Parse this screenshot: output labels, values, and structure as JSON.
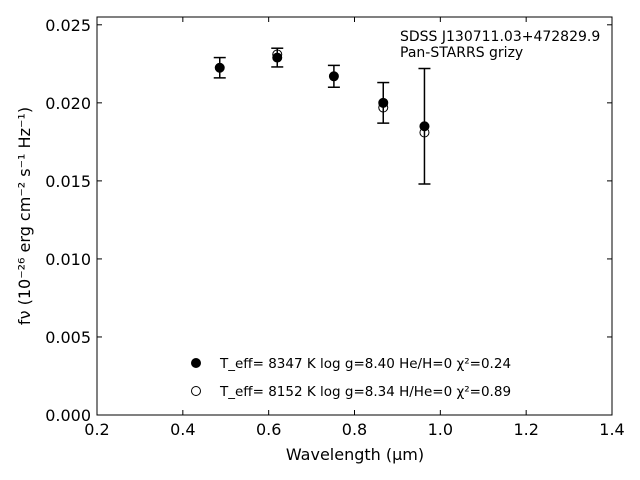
{
  "chart_data": {
    "type": "scatter",
    "xlabel": "Wavelength (μm)",
    "ylabel": "fν (10⁻²⁶ erg cm⁻² s⁻¹ Hz⁻¹)",
    "xlim": [
      0.2,
      1.4
    ],
    "ylim": [
      0.0,
      0.0255
    ],
    "xticks": [
      0.2,
      0.4,
      0.6,
      0.8,
      1.0,
      1.2,
      1.4
    ],
    "xtick_labels": [
      "0.2",
      "0.4",
      "0.6",
      "0.8",
      "1.0",
      "1.2",
      "1.4"
    ],
    "yticks": [
      0.0,
      0.005,
      0.01,
      0.015,
      0.02,
      0.025
    ],
    "ytick_labels": [
      "0.000",
      "0.005",
      "0.010",
      "0.015",
      "0.020",
      "0.025"
    ],
    "grid": false,
    "legend_position": "lower-center",
    "annotation": [
      "SDSS J130711.03+472829.9",
      "Pan-STARRS grizy"
    ],
    "series": [
      {
        "name": "T_eff= 8347 K  log g=8.40  He/H=0  χ²=0.24",
        "marker": "filled-circle",
        "x": [
          0.486,
          0.62,
          0.752,
          0.867,
          0.963
        ],
        "y": [
          0.02225,
          0.0229,
          0.0217,
          0.02,
          0.0185
        ],
        "yerr": [
          0.00065,
          0.0006,
          0.0007,
          0.0013,
          0.0037
        ]
      },
      {
        "name": "T_eff= 8152 K  log g=8.34  H/He=0  χ²=0.89",
        "marker": "open-circle",
        "x": [
          0.62,
          0.867,
          0.963
        ],
        "y": [
          0.0231,
          0.0197,
          0.0181
        ]
      }
    ]
  }
}
